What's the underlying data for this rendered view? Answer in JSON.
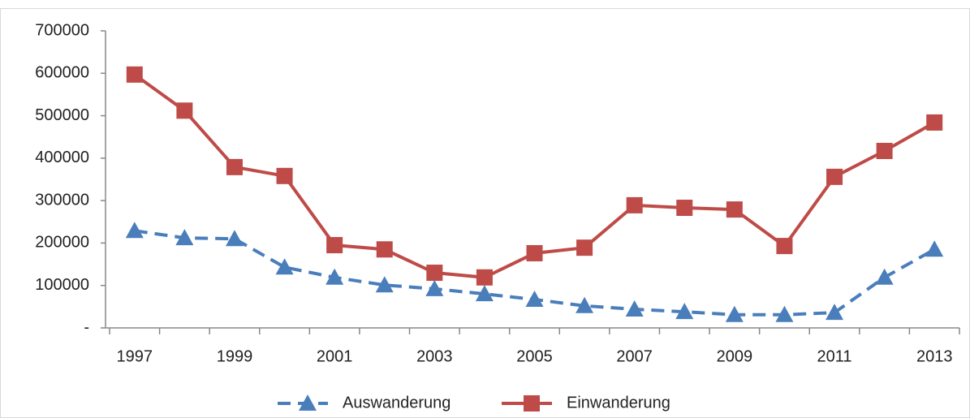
{
  "chart_data": {
    "type": "line",
    "categories": [
      "1997",
      null,
      "1999",
      null,
      "2001",
      null,
      "2003",
      null,
      "2005",
      null,
      "2007",
      null,
      "2009",
      null,
      "2011",
      null,
      "2013"
    ],
    "series": [
      {
        "name": "Auswanderung",
        "color": "#4a7ebb",
        "dashed": true,
        "marker": "triangle",
        "values": [
          229000,
          212000,
          210000,
          143000,
          119000,
          101000,
          92000,
          80000,
          67000,
          52000,
          44000,
          38000,
          31000,
          31000,
          36000,
          119000,
          185000
        ]
      },
      {
        "name": "Einwanderung",
        "color": "#be4b48",
        "dashed": false,
        "marker": "square",
        "values": [
          597000,
          512000,
          379000,
          358000,
          195000,
          185000,
          130000,
          119000,
          176000,
          189000,
          289000,
          283000,
          279000,
          193000,
          356000,
          417000,
          484000
        ]
      }
    ],
    "ylim": [
      0,
      700000
    ],
    "yticks": [
      {
        "value": 0,
        "label": "-"
      },
      100000,
      200000,
      300000,
      400000,
      500000,
      600000,
      700000
    ],
    "grid": false,
    "legend": "bottom"
  }
}
